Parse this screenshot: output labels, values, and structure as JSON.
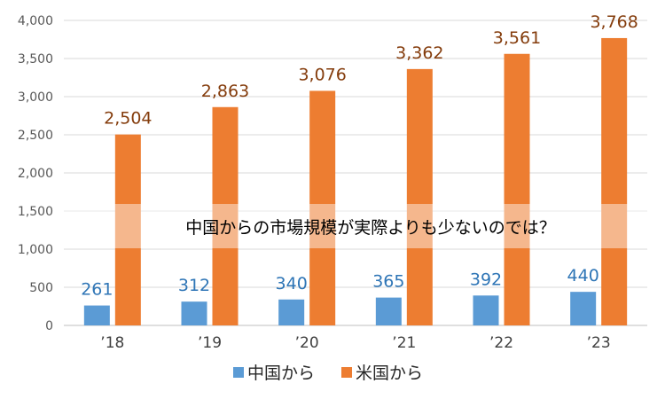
{
  "chart_data": {
    "type": "bar",
    "title": "",
    "xlabel": "",
    "ylabel": "",
    "categories": [
      "’18",
      "’19",
      "’20",
      "’21",
      "’22",
      "’23"
    ],
    "series": [
      {
        "name": "中国から",
        "color": "#5b9bd5",
        "label_color": "#2e75b6",
        "values": [
          261,
          312,
          340,
          365,
          392,
          440
        ]
      },
      {
        "name": "米国から",
        "color": "#ed7d31",
        "label_color": "#843c0c",
        "values": [
          2504,
          2863,
          3076,
          3362,
          3561,
          3768
        ]
      }
    ],
    "data_labels": [
      [
        "261",
        "312",
        "340",
        "365",
        "392",
        "440"
      ],
      [
        "2,504",
        "2,863",
        "3,076",
        "3,362",
        "3,561",
        "3,768"
      ]
    ],
    "ylim": [
      0,
      4000
    ],
    "yticks": [
      0,
      500,
      1000,
      1500,
      2000,
      2500,
      3000,
      3500,
      4000
    ],
    "ytick_labels": [
      "0",
      "500",
      "1,000",
      "1,500",
      "2,000",
      "2,500",
      "3,000",
      "3,500",
      "4,000"
    ],
    "grid": true,
    "legend_position": "bottom",
    "annotation": {
      "text": "中国からの市場規模が実際よりも少ないのでは？",
      "band_color": "#ffffff"
    }
  }
}
